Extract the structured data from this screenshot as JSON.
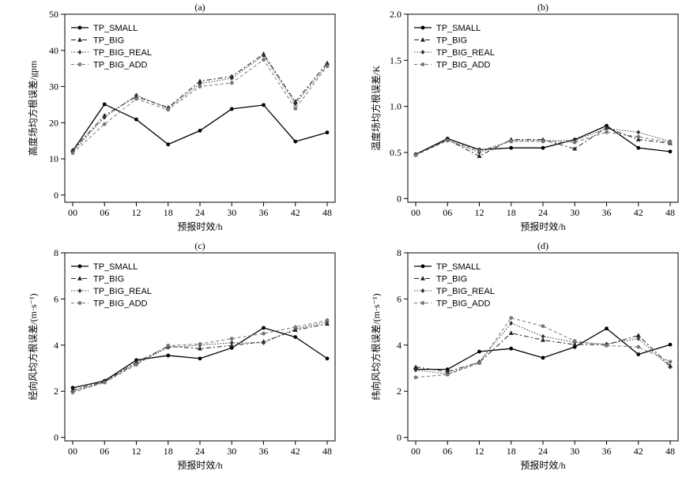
{
  "styles": {
    "series": [
      {
        "color": "#000000",
        "dash": "",
        "marker": "circle",
        "width": 1.3
      },
      {
        "color": "#222222",
        "dash": "6,3,2,3",
        "marker": "triangle",
        "width": 1.0
      },
      {
        "color": "#333333",
        "dash": "1.5,2",
        "marker": "diamond",
        "width": 1.0
      },
      {
        "color": "#777777",
        "dash": "4,3",
        "marker": "circle",
        "width": 1.0
      }
    ]
  },
  "chart_data": [
    {
      "type": "line",
      "title": "(a)",
      "ylabel": "高度场均方根误差/gpm",
      "xlabel": "预报时效/h",
      "categories": [
        "00",
        "06",
        "12",
        "18",
        "24",
        "30",
        "36",
        "42",
        "48"
      ],
      "ylim": [
        -2,
        50
      ],
      "yticks": [
        0,
        10,
        20,
        30,
        40,
        50
      ],
      "ytick_labels": [
        "0",
        "10",
        "20",
        "30",
        "40",
        "50"
      ],
      "legend_position": "top-left",
      "series": [
        {
          "name": "TP_SMALL",
          "values": [
            12.2,
            25.1,
            20.9,
            14.0,
            17.8,
            23.8,
            24.9,
            14.8,
            17.3
          ]
        },
        {
          "name": "TP_BIG",
          "values": [
            12.4,
            22.0,
            27.2,
            24.2,
            31.5,
            32.8,
            39.0,
            25.8,
            36.5
          ]
        },
        {
          "name": "TP_BIG_REAL",
          "values": [
            12.0,
            21.5,
            27.6,
            24.0,
            30.8,
            32.3,
            38.6,
            25.2,
            36.0
          ]
        },
        {
          "name": "TP_BIG_ADD",
          "values": [
            11.6,
            19.6,
            26.6,
            23.6,
            30.0,
            31.0,
            37.4,
            23.9,
            35.6
          ]
        }
      ]
    },
    {
      "type": "line",
      "title": "(b)",
      "ylabel": "温度场均方根误差/K",
      "xlabel": "预报时效/h",
      "categories": [
        "00",
        "06",
        "12",
        "18",
        "24",
        "30",
        "36",
        "42",
        "48"
      ],
      "ylim": [
        -0.04,
        2.0
      ],
      "yticks": [
        0,
        0.5,
        1.0,
        1.5,
        2.0
      ],
      "ytick_labels": [
        "0",
        "0.5",
        "1.0",
        "1.5",
        "2.0"
      ],
      "legend_position": "top-left",
      "series": [
        {
          "name": "TP_SMALL",
          "values": [
            0.48,
            0.65,
            0.53,
            0.55,
            0.55,
            0.64,
            0.79,
            0.55,
            0.51
          ]
        },
        {
          "name": "TP_BIG",
          "values": [
            0.48,
            0.64,
            0.46,
            0.64,
            0.64,
            0.54,
            0.77,
            0.64,
            0.6
          ]
        },
        {
          "name": "TP_BIG_REAL",
          "values": [
            0.48,
            0.63,
            0.5,
            0.63,
            0.63,
            0.63,
            0.76,
            0.72,
            0.62
          ]
        },
        {
          "name": "TP_BIG_ADD",
          "values": [
            0.47,
            0.63,
            0.52,
            0.62,
            0.62,
            0.61,
            0.72,
            0.67,
            0.61
          ]
        }
      ]
    },
    {
      "type": "line",
      "title": "(c)",
      "ylabel": "经向风均方根误差/(m·s⁻¹)",
      "xlabel": "预报时效/h",
      "categories": [
        "00",
        "06",
        "12",
        "18",
        "24",
        "30",
        "36",
        "42",
        "48"
      ],
      "ylim": [
        -0.15,
        8
      ],
      "yticks": [
        0,
        2,
        4,
        6,
        8
      ],
      "ytick_labels": [
        "0",
        "2",
        "4",
        "6",
        "8"
      ],
      "legend_position": "top-left",
      "series": [
        {
          "name": "TP_SMALL",
          "values": [
            2.15,
            2.45,
            3.35,
            3.55,
            3.42,
            3.88,
            4.75,
            4.35,
            3.42
          ]
        },
        {
          "name": "TP_BIG",
          "values": [
            2.05,
            2.42,
            3.25,
            3.95,
            3.85,
            3.98,
            4.15,
            4.65,
            4.92
          ]
        },
        {
          "name": "TP_BIG_REAL",
          "values": [
            2.0,
            2.4,
            3.2,
            3.9,
            4.0,
            4.1,
            4.1,
            4.7,
            5.0
          ]
        },
        {
          "name": "TP_BIG_ADD",
          "values": [
            1.95,
            2.38,
            3.15,
            3.98,
            4.05,
            4.28,
            4.5,
            4.78,
            5.08
          ]
        }
      ]
    },
    {
      "type": "line",
      "title": "(d)",
      "ylabel": "纬向风均方根误差/(m·s⁻¹)",
      "xlabel": "预报时效/h",
      "categories": [
        "00",
        "06",
        "12",
        "18",
        "24",
        "30",
        "36",
        "42",
        "48"
      ],
      "ylim": [
        -0.15,
        8
      ],
      "yticks": [
        0,
        2,
        4,
        6,
        8
      ],
      "ytick_labels": [
        "0",
        "2",
        "4",
        "6",
        "8"
      ],
      "legend_position": "top-left",
      "series": [
        {
          "name": "TP_SMALL",
          "values": [
            2.95,
            2.95,
            3.72,
            3.85,
            3.45,
            3.92,
            4.72,
            3.6,
            4.02
          ]
        },
        {
          "name": "TP_BIG",
          "values": [
            3.05,
            2.85,
            3.25,
            4.52,
            4.22,
            4.02,
            4.02,
            4.42,
            3.1
          ]
        },
        {
          "name": "TP_BIG_REAL",
          "values": [
            2.92,
            2.75,
            3.28,
            4.95,
            4.38,
            4.12,
            4.05,
            4.28,
            3.05
          ]
        },
        {
          "name": "TP_BIG_ADD",
          "values": [
            2.6,
            2.72,
            3.22,
            5.18,
            4.82,
            4.18,
            3.98,
            3.92,
            3.28
          ]
        }
      ]
    }
  ]
}
